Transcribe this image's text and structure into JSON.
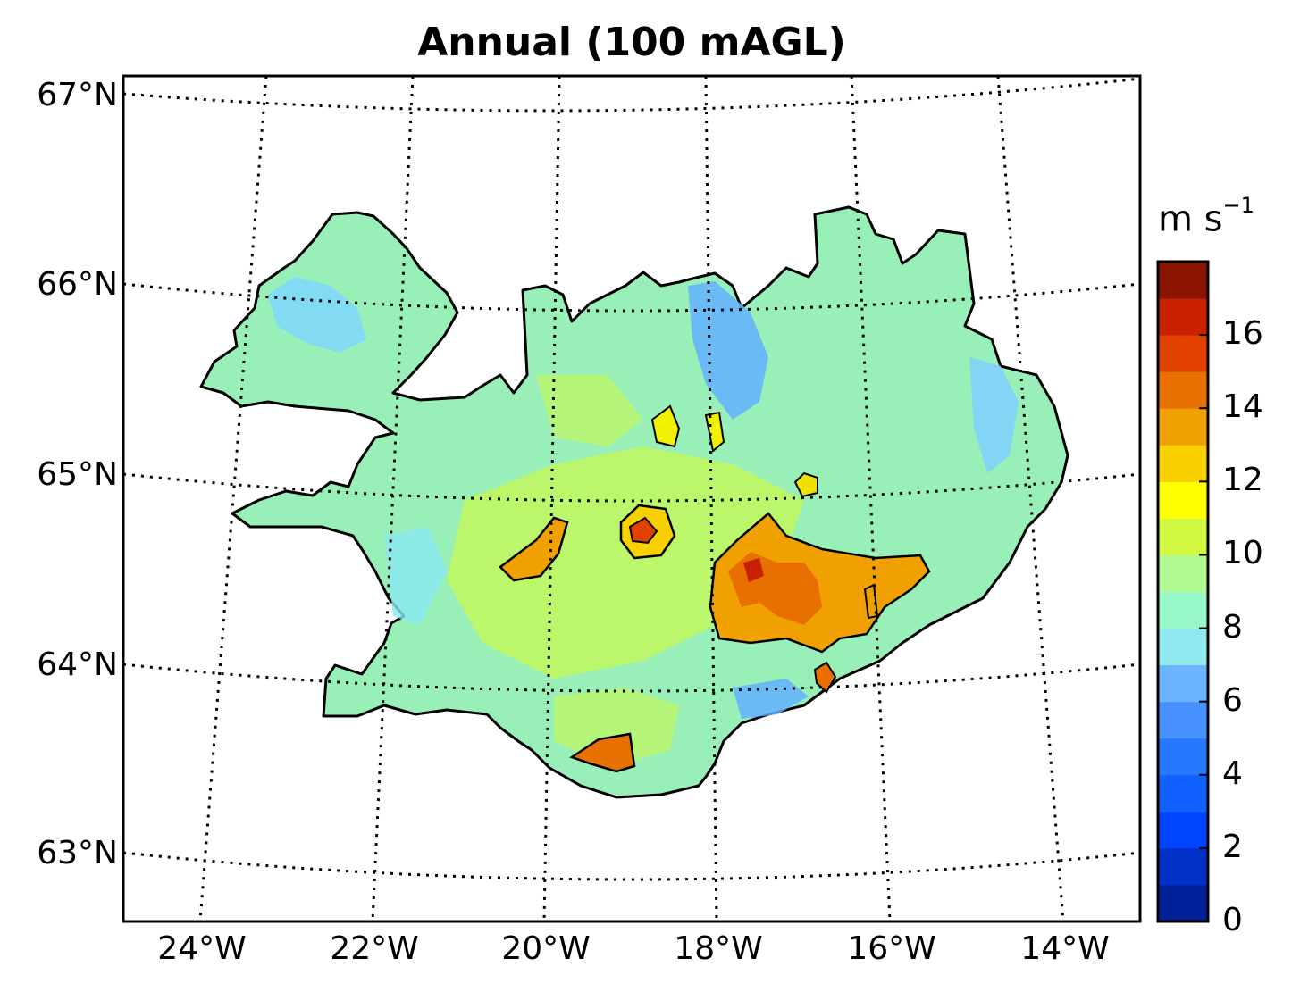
{
  "title": "Annual (100 mAGL)",
  "colorbar": {
    "unit_base": "m s",
    "unit_exp": "−1",
    "ticks": [
      "0",
      "2",
      "4",
      "6",
      "8",
      "10",
      "12",
      "14",
      "16"
    ],
    "range": [
      0,
      18
    ],
    "colors": [
      "#00209a",
      "#0030c8",
      "#0044ff",
      "#1060ff",
      "#2878ff",
      "#4890ff",
      "#6cb4ff",
      "#8ee8ee",
      "#98f8c8",
      "#b0f890",
      "#d0f840",
      "#ffff00",
      "#f8d000",
      "#f0a000",
      "#e87000",
      "#e04000",
      "#c82000",
      "#8a1400"
    ]
  },
  "latitude_labels": [
    "67°N",
    "66°N",
    "65°N",
    "64°N",
    "63°N"
  ],
  "longitude_labels": [
    "24°W",
    "22°W",
    "20°W",
    "18°W",
    "16°W",
    "14°W"
  ]
}
